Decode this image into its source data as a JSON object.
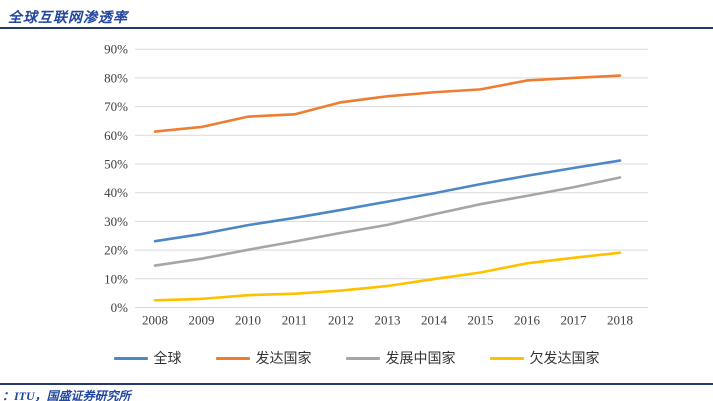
{
  "page": {
    "title": "全球互联网渗透率",
    "source": "：ITU，国盛证券研究所"
  },
  "chart_data": {
    "type": "line",
    "title": "全球互联网渗透率",
    "x": [
      2008,
      2009,
      2010,
      2011,
      2012,
      2013,
      2014,
      2015,
      2016,
      2017,
      2018
    ],
    "series": [
      {
        "name": "全球",
        "color": "#4e87c5",
        "values": [
          23.1,
          25.6,
          28.7,
          31.2,
          34.0,
          36.9,
          39.8,
          43.0,
          45.9,
          48.6,
          51.2
        ]
      },
      {
        "name": "发达国家",
        "color": "#ed7d31",
        "values": [
          61.3,
          62.9,
          66.5,
          67.3,
          71.5,
          73.6,
          75.0,
          76.0,
          79.1,
          80.0,
          80.8
        ]
      },
      {
        "name": "发展中国家",
        "color": "#a6a6a6",
        "values": [
          14.6,
          17.0,
          20.1,
          23.0,
          26.0,
          28.8,
          32.5,
          36.0,
          38.9,
          41.9,
          45.3
        ]
      },
      {
        "name": "欠发达国家",
        "color": "#ffc000",
        "values": [
          2.5,
          3.0,
          4.3,
          4.8,
          5.9,
          7.5,
          9.9,
          12.2,
          15.4,
          17.3,
          19.1
        ]
      }
    ],
    "ylim": [
      0,
      90
    ],
    "ytick_step": 10,
    "ytick_labels": [
      "0%",
      "10%",
      "20%",
      "30%",
      "40%",
      "50%",
      "60%",
      "70%",
      "80%",
      "90%"
    ],
    "xlabel": "",
    "ylabel": "",
    "grid": true,
    "legend_position": "bottom",
    "gridline_color": "#d9d9d9",
    "tick_label_color": "#404040"
  }
}
